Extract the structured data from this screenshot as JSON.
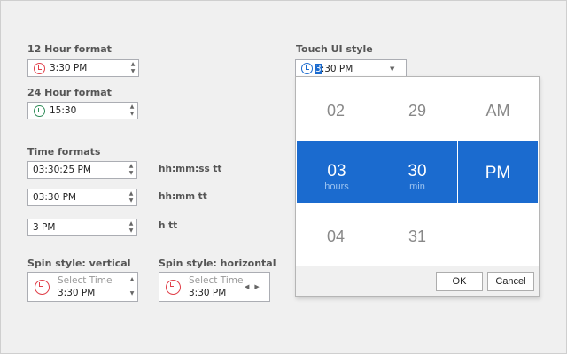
{
  "twelve_hour": {
    "label": "12 Hour format",
    "value": "3:30 PM",
    "icon": "clock-icon",
    "icon_color": "#e0404a"
  },
  "twentyfour_hour": {
    "label": "24 Hour format",
    "value": "15:30",
    "icon": "clock-icon",
    "icon_color": "#2e8b57"
  },
  "time_formats": {
    "label": "Time formats",
    "items": [
      {
        "value": "03:30:25 PM",
        "format": "hh:mm:ss tt"
      },
      {
        "value": "03:30 PM",
        "format": "hh:mm tt"
      },
      {
        "value": "3 PM",
        "format": "h tt"
      }
    ]
  },
  "spin_vertical": {
    "label": "Spin style: vertical",
    "placeholder": "Select Time",
    "value": "3:30 PM"
  },
  "spin_horizontal": {
    "label": "Spin style: horizontal",
    "placeholder": "Select Time",
    "value": "3:30 PM"
  },
  "touch": {
    "label": "Touch UI style",
    "value_selected": "3",
    "value_rest": ":30 PM",
    "icon_color": "#1b6bcf",
    "picker": {
      "hours": {
        "prev": "02",
        "current": "03",
        "next": "04",
        "unit": "hours"
      },
      "minutes": {
        "prev": "29",
        "current": "30",
        "next": "31",
        "unit": "min"
      },
      "period": {
        "prev": "AM",
        "current": "PM"
      },
      "ok": "OK",
      "cancel": "Cancel",
      "accent": "#1b6bcf"
    }
  }
}
